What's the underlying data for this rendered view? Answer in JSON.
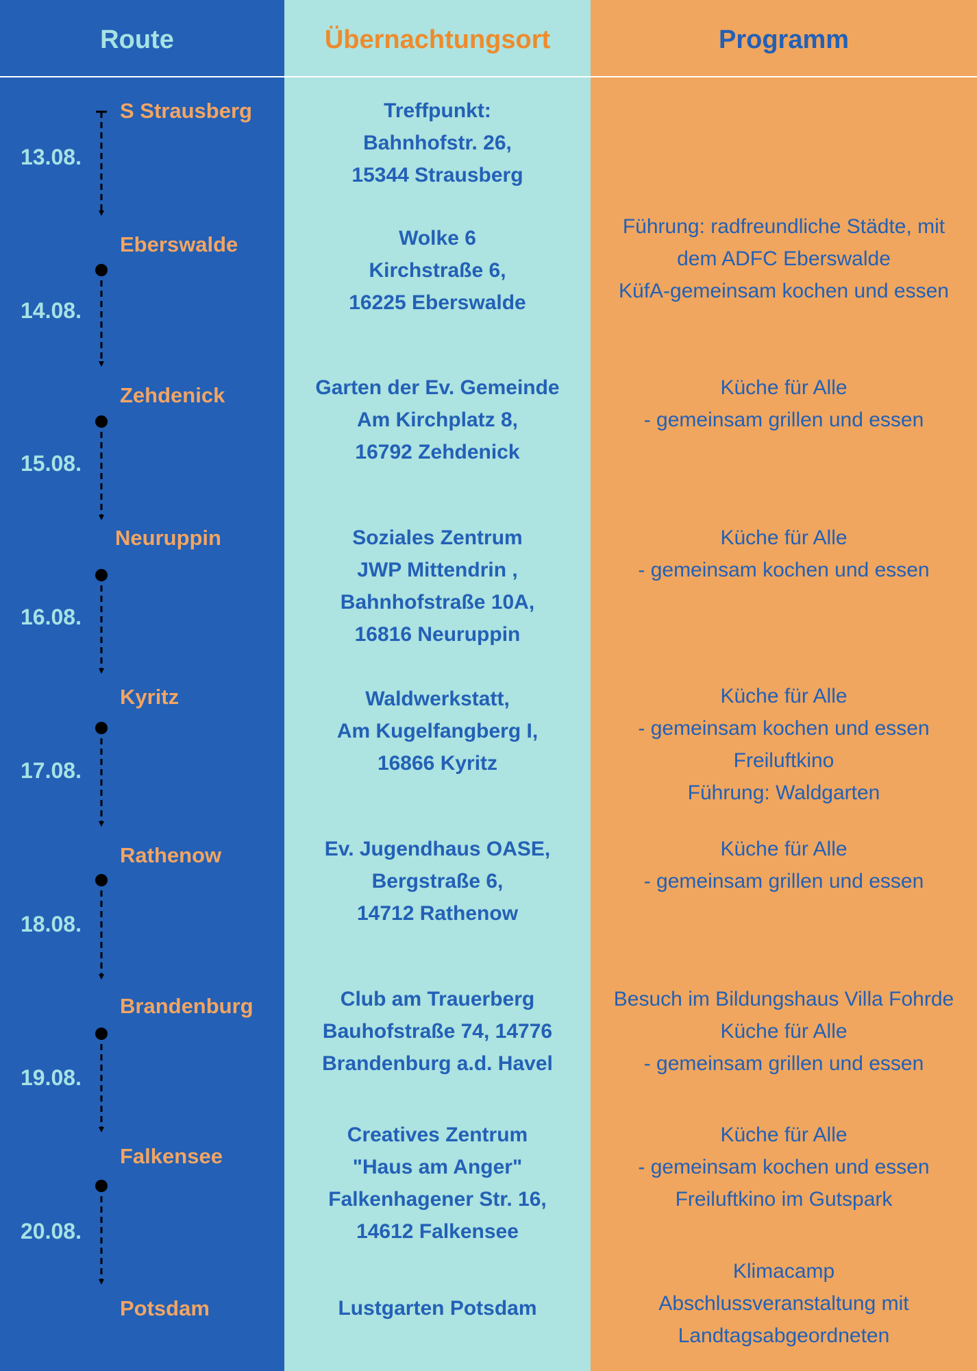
{
  "header": {
    "route": "Route",
    "ort": "Übernachtungsort",
    "programm": "Programm"
  },
  "stops": [
    {
      "city": "S Strausberg",
      "place": [
        "Treffpunkt:",
        "Bahnhofstr. 26,",
        "15344 Strausberg"
      ],
      "program": []
    },
    {
      "city": "Eberswalde",
      "place": [
        "Wolke 6",
        "Kirchstraße 6,",
        "16225  Eberswalde"
      ],
      "program": [
        "Führung:  radfreundliche Städte, mit",
        "dem ADFC Eberswalde",
        " KüfA-gemeinsam kochen und essen"
      ]
    },
    {
      "city": "Zehdenick",
      "place": [
        "Garten der Ev. Gemeinde",
        "Am Kirchplatz 8,",
        "16792 Zehdenick"
      ],
      "program": [
        "Küche für Alle",
        "- gemeinsam grillen und essen"
      ]
    },
    {
      "city": "Neuruppin",
      "place": [
        "Soziales Zentrum",
        " JWP Mittendrin ,",
        "Bahnhofstraße 10A,",
        "16816 Neuruppin"
      ],
      "program": [
        "Küche für Alle",
        "- gemeinsam kochen und essen"
      ]
    },
    {
      "city": "Kyritz",
      "place": [
        "Waldwerkstatt,",
        "Am Kugelfangberg I,",
        "16866 Kyritz"
      ],
      "program": [
        "Küche für Alle",
        "- gemeinsam kochen und essen",
        "Freiluftkino",
        "Führung: Waldgarten"
      ]
    },
    {
      "city": "Rathenow",
      "place": [
        "Ev. Jugendhaus OASE,",
        "Bergstraße 6,",
        "14712  Rathenow"
      ],
      "program": [
        "Küche für Alle",
        "- gemeinsam grillen und essen"
      ]
    },
    {
      "city": "Brandenburg",
      "place": [
        "Club am Trauerberg",
        "Bauhofstraße 74,  14776",
        "Brandenburg a.d. Havel"
      ],
      "program": [
        "Besuch im Bildungshaus Villa Fohrde",
        "Küche für Alle",
        "- gemeinsam grillen und essen"
      ]
    },
    {
      "city": "Falkensee",
      "place": [
        "Creatives Zentrum",
        "\"Haus am Anger\"",
        "Falkenhagener Str. 16,",
        "14612 Falkensee"
      ],
      "program": [
        "Küche für Alle",
        "- gemeinsam kochen und essen",
        "Freiluftkino im Gutspark"
      ]
    },
    {
      "city": "Potsdam",
      "place": [
        "Lustgarten Potsdam"
      ],
      "program": [
        "Klimacamp",
        "Abschlussveranstaltung mit",
        "Landtagsabgeordneten"
      ]
    }
  ],
  "dates": [
    "13.08.",
    "14.08.",
    "15.08.",
    "16.08.",
    "17.08.",
    "18.08.",
    "19.08.",
    "20.08."
  ],
  "colors": {
    "route_bg": "#2360b6",
    "ort_bg": "#ade3e0",
    "programm_bg": "#f0a65e",
    "city": "#f2a563",
    "date": "#a7e2e4"
  }
}
